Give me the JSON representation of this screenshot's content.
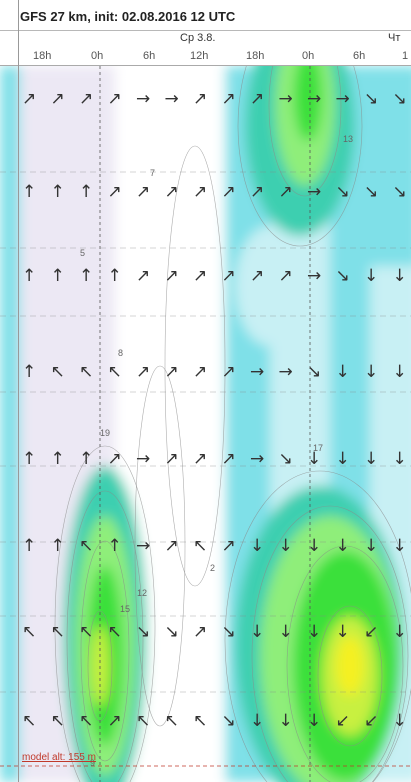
{
  "header": {
    "title": "GFS 27 km, init: 02.08.2016 12 UTC"
  },
  "chart_data": {
    "type": "heatmap",
    "title": "GFS 27 km, init: 02.08.2016 12 UTC",
    "day_labels": [
      "Ср 3.8.",
      "Чт"
    ],
    "hour_ticks": [
      "18h",
      "0h",
      "6h",
      "12h",
      "18h",
      "0h",
      "6h",
      "1"
    ],
    "footer_label": "model alt: 155 m",
    "grid": true,
    "colors": {
      "white": "#ffffff",
      "lavender": "#ece8f4",
      "cyan_light": "#c8f0f4",
      "cyan": "#7fe0e8",
      "teal": "#3ccfb0",
      "green_light": "#8fee7a",
      "green": "#3be03a",
      "yellow_green": "#c8f040",
      "yellow": "#f5f020",
      "contour": "#8a8a8a",
      "arrow": "#333333"
    },
    "contour_labels": [
      "2",
      "5",
      "7",
      "8",
      "12",
      "13",
      "15",
      "17",
      "19",
      "9"
    ],
    "wind_arrows": {
      "rows": [
        [
          "↗",
          "↗",
          "↗",
          "↗",
          "→",
          "→",
          "↗",
          "↗",
          "↗",
          "→",
          "→",
          "→",
          "↘",
          "↘"
        ],
        [
          "↑",
          "↑",
          "↑",
          "↗",
          "↗",
          "↗",
          "↗",
          "↗",
          "↗",
          "↗",
          "→",
          "↘",
          "↘",
          "↘"
        ],
        [
          "↑",
          "↑",
          "↑",
          "↑",
          "↗",
          "↗",
          "↗",
          "↗",
          "↗",
          "↗",
          "→",
          "↘",
          "↓",
          "↓"
        ],
        [
          "↑",
          "↖",
          "↖",
          "↖",
          "↗",
          "↗",
          "↗",
          "↗",
          "→",
          "→",
          "↘",
          "↓",
          "↓",
          "↓"
        ],
        [
          "↑",
          "↑",
          "↑",
          "↗",
          "→",
          "↗",
          "↗",
          "↗",
          "→",
          "↘",
          "↓",
          "↓",
          "↓",
          "↓"
        ],
        [
          "↑",
          "↑",
          "↖",
          "↑",
          "→",
          "↗",
          "↖",
          "↗",
          "↓",
          "↓",
          "↓",
          "↓",
          "↓",
          "↓"
        ],
        [
          "↖",
          "↖",
          "↖",
          "↖",
          "↘",
          "↘",
          "↗",
          "↘",
          "↓",
          "↓",
          "↓",
          "↓",
          "↙",
          "↓"
        ],
        [
          "↖",
          "↖",
          "↖",
          "↗",
          "↖",
          "↖",
          "↖",
          "↘",
          "↓",
          "↓",
          "↓",
          "↙",
          "↙",
          "↓"
        ]
      ]
    }
  }
}
